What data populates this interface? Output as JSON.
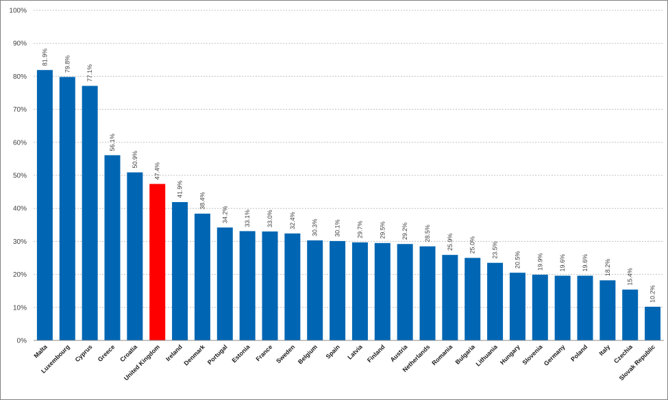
{
  "chart_data": {
    "type": "bar",
    "categories": [
      "Malta",
      "Luxembourg",
      "Cyprus",
      "Greece",
      "Croatia",
      "United Kingdom",
      "Ireland",
      "Denmark",
      "Portugal",
      "Estonia",
      "France",
      "Sweden",
      "Belgium",
      "Spain",
      "Latvia",
      "Finland",
      "Austria",
      "Netherlands",
      "Romania",
      "Bulgaria",
      "Lithuania",
      "Hungary",
      "Slovenia",
      "Germany",
      "Poland",
      "Italy",
      "Czechia",
      "Slovak Republic"
    ],
    "values": [
      81.9,
      79.8,
      77.1,
      56.1,
      50.9,
      47.4,
      41.9,
      38.4,
      34.2,
      33.1,
      33.0,
      32.4,
      30.3,
      30.1,
      29.7,
      29.5,
      29.2,
      28.5,
      25.9,
      25.0,
      23.5,
      20.5,
      19.9,
      19.6,
      19.6,
      18.2,
      15.4,
      10.2
    ],
    "data_labels": [
      "81.9%",
      "79.8%",
      "77.1%",
      "56.1%",
      "50.9%",
      "47.4%",
      "41.9%",
      "38.4%",
      "34.2%",
      "33.1%",
      "33.0%",
      "32.4%",
      "30.3%",
      "30.1%",
      "29.7%",
      "29.5%",
      "29.2%",
      "28.5%",
      "25.9%",
      "25.0%",
      "23.5%",
      "20.5%",
      "19.9%",
      "19.6%",
      "19.6%",
      "18.2%",
      "15.4%",
      "10.2%"
    ],
    "yticks": [
      0,
      10,
      20,
      30,
      40,
      50,
      60,
      70,
      80,
      90,
      100
    ],
    "ytick_labels": [
      "0%",
      "10%",
      "20%",
      "30%",
      "40%",
      "50%",
      "60%",
      "70%",
      "80%",
      "90%",
      "100%"
    ],
    "ylim": [
      0,
      100
    ],
    "grid": true,
    "legend": "none",
    "title": "",
    "xlabel": "",
    "ylabel": "",
    "colors": {
      "bar": "#0066b3",
      "highlight": "#ff0000",
      "highlight_category": "United Kingdom"
    }
  }
}
